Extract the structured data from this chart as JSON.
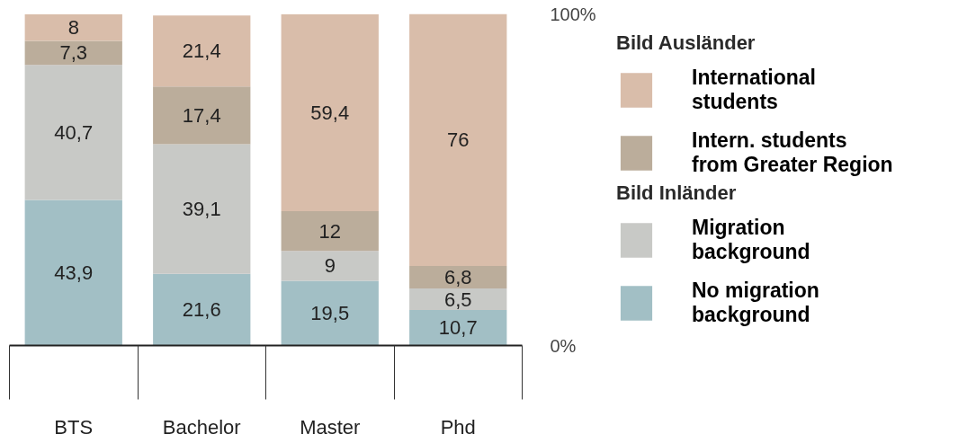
{
  "chart_data": {
    "type": "bar",
    "stacked": true,
    "categories": [
      "BTS",
      "Bachelor",
      "Master",
      "Phd"
    ],
    "ylim": [
      0,
      100
    ],
    "yticks": [
      {
        "value": 0,
        "label": "0%"
      },
      {
        "value": 100,
        "label": "100%"
      }
    ],
    "legend": "right",
    "grid": false,
    "annotations": [
      "Bild Ausländer",
      "Bild Inländer"
    ],
    "series": [
      {
        "name": "No migration background",
        "color": "#a2bfc5",
        "values": [
          43.9,
          21.6,
          19.5,
          10.7
        ],
        "value_labels": [
          "43,9",
          "21,6",
          "19,5",
          "10,7"
        ]
      },
      {
        "name": "Migration background",
        "color": "#c8c9c6",
        "values": [
          40.7,
          39.1,
          9,
          6.5
        ],
        "value_labels": [
          "40,7",
          "39,1",
          "9",
          "6,5"
        ]
      },
      {
        "name": "Intern. students from Greater Region",
        "color": "#bbad9b",
        "values": [
          7.3,
          17.4,
          12,
          6.8
        ],
        "value_labels": [
          "7,3",
          "17,4",
          "12",
          "6,8"
        ]
      },
      {
        "name": "International students",
        "color": "#d9bdaa",
        "values": [
          8,
          21.4,
          59.4,
          76
        ],
        "value_labels": [
          "8",
          "21,4",
          "59,4",
          "76"
        ]
      }
    ]
  }
}
